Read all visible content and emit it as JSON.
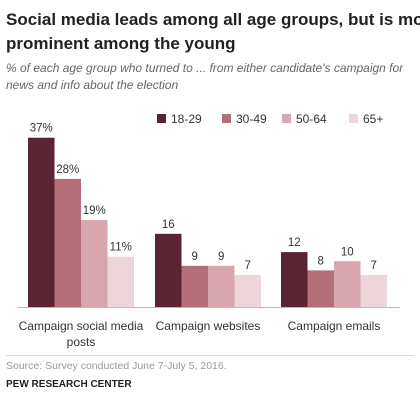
{
  "chart_data": {
    "type": "bar",
    "title": "Social media leads among all age groups, but is most prominent among the young",
    "title_lines": [
      "Social media leads among all age groups, but is most",
      "prominent among the young"
    ],
    "subtitle": "% of each age group who turned to ... from either candidate's campaign for news and info about the election",
    "subtitle_lines": [
      "% of each age group who turned to ... from either candidate's campaign for",
      "news and info about the election"
    ],
    "categories": [
      "Campaign social media posts",
      "Campaign websites",
      "Campaign emails"
    ],
    "category_lines": [
      [
        "Campaign social media",
        "posts"
      ],
      [
        "Campaign websites"
      ],
      [
        "Campaign emails"
      ]
    ],
    "series": [
      {
        "name": "18-29",
        "color": "#5b2433",
        "values": [
          37,
          16,
          12
        ],
        "labels": [
          "37%",
          "16",
          "12"
        ]
      },
      {
        "name": "30-49",
        "color": "#b46e7a",
        "values": [
          28,
          9,
          8
        ],
        "labels": [
          "28%",
          "9",
          "8"
        ]
      },
      {
        "name": "50-64",
        "color": "#d7a6ae",
        "values": [
          19,
          9,
          10
        ],
        "labels": [
          "19%",
          "9",
          "10"
        ]
      },
      {
        "name": "65+",
        "color": "#ecd6da",
        "values": [
          11,
          7,
          7
        ],
        "labels": [
          "11%",
          "7",
          "7"
        ]
      }
    ],
    "legend_position": "top-right",
    "grid": false,
    "ylim": [
      0,
      40
    ],
    "source": "Source: Survey conducted June 7-July 5, 2016.",
    "credit": "PEW RESEARCH CENTER"
  }
}
